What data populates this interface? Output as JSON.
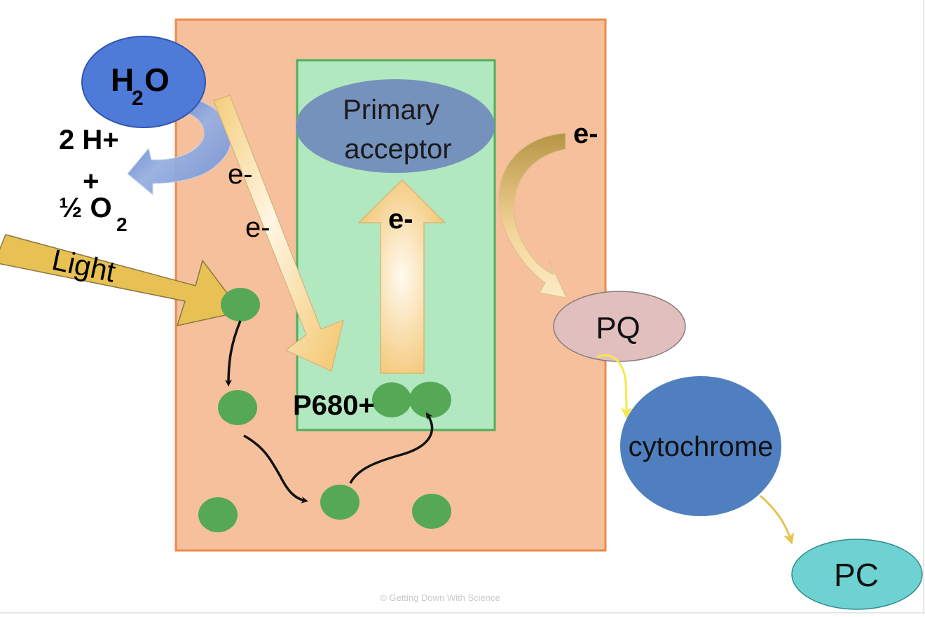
{
  "water": {
    "main": "H",
    "sub": "2",
    "tail": "O"
  },
  "products": {
    "hydrogen": "2 H+",
    "plus": "+",
    "oxygen_main": "½ O",
    "oxygen_sub": "2"
  },
  "light_label": "Light",
  "electron_labels": {
    "upper": "e-",
    "lower": "e-",
    "center": "e-",
    "right": "e-"
  },
  "primary_acceptor": {
    "line1": "Primary",
    "line2": "acceptor"
  },
  "reaction_center_label": "P680+",
  "carriers": {
    "pq": "PQ",
    "cytochrome": "cytochrome",
    "pc": "PC"
  },
  "footer_credit": "© Getting Down With Science",
  "colors": {
    "photosystem_fill": "#f5c09b",
    "photosystem_border": "#ec8a4a",
    "core_fill": "#b2e8c0",
    "core_border": "#4fae5c",
    "water_blue": "#4e7ad8",
    "acceptor_blue": "#7592bd",
    "pigment_green": "#55a855",
    "light_gold": "#e8c155",
    "pq_pink": "#e1bfbf",
    "cytochrome_blue": "#4f7fbf",
    "pc_teal": "#6fd2d2",
    "transfer_yellow": "#f6e94a"
  }
}
